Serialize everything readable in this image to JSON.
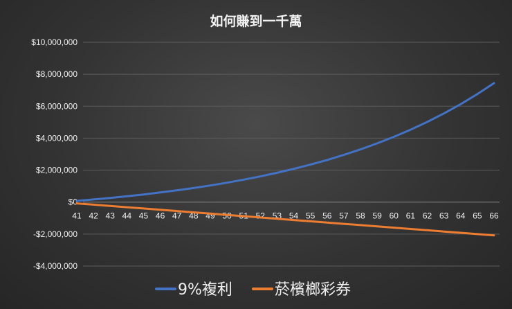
{
  "chart_data": {
    "type": "line",
    "title": "如何賺到一千萬",
    "xlabel": "",
    "ylabel": "",
    "categories": [
      41,
      42,
      43,
      44,
      45,
      46,
      47,
      48,
      49,
      50,
      51,
      52,
      53,
      54,
      55,
      56,
      57,
      58,
      59,
      60,
      61,
      62,
      63,
      64,
      65,
      66
    ],
    "ylim": [
      -4000000,
      10000000
    ],
    "yticks": [
      -4000000,
      -2000000,
      0,
      2000000,
      4000000,
      6000000,
      8000000,
      10000000
    ],
    "ytick_labels": [
      "-$4,000,000",
      "-$2,000,000",
      "$0",
      "$2,000,000",
      "$4,000,000",
      "$6,000,000",
      "$8,000,000",
      "$10,000,000"
    ],
    "grid": true,
    "legend_position": "bottom",
    "series": [
      {
        "name": "9%複利",
        "color": "#4472C4",
        "values": [
          80000,
          167000,
          262000,
          366000,
          479000,
          602000,
          736000,
          882000,
          1041000,
          1215000,
          1404000,
          1610000,
          1835000,
          2079000,
          2346000,
          2636000,
          2953000,
          3298000,
          3674000,
          4084000,
          4530000,
          5017000,
          5548000,
          6126000,
          6756000,
          7443000
        ]
      },
      {
        "name": "菸檳榔彩券",
        "color": "#ED7D31",
        "values": [
          -80000,
          -160000,
          -240000,
          -320000,
          -400000,
          -480000,
          -560000,
          -640000,
          -720000,
          -800000,
          -880000,
          -960000,
          -1040000,
          -1120000,
          -1200000,
          -1280000,
          -1360000,
          -1440000,
          -1520000,
          -1600000,
          -1680000,
          -1760000,
          -1840000,
          -1920000,
          -2000000,
          -2080000
        ]
      }
    ]
  }
}
